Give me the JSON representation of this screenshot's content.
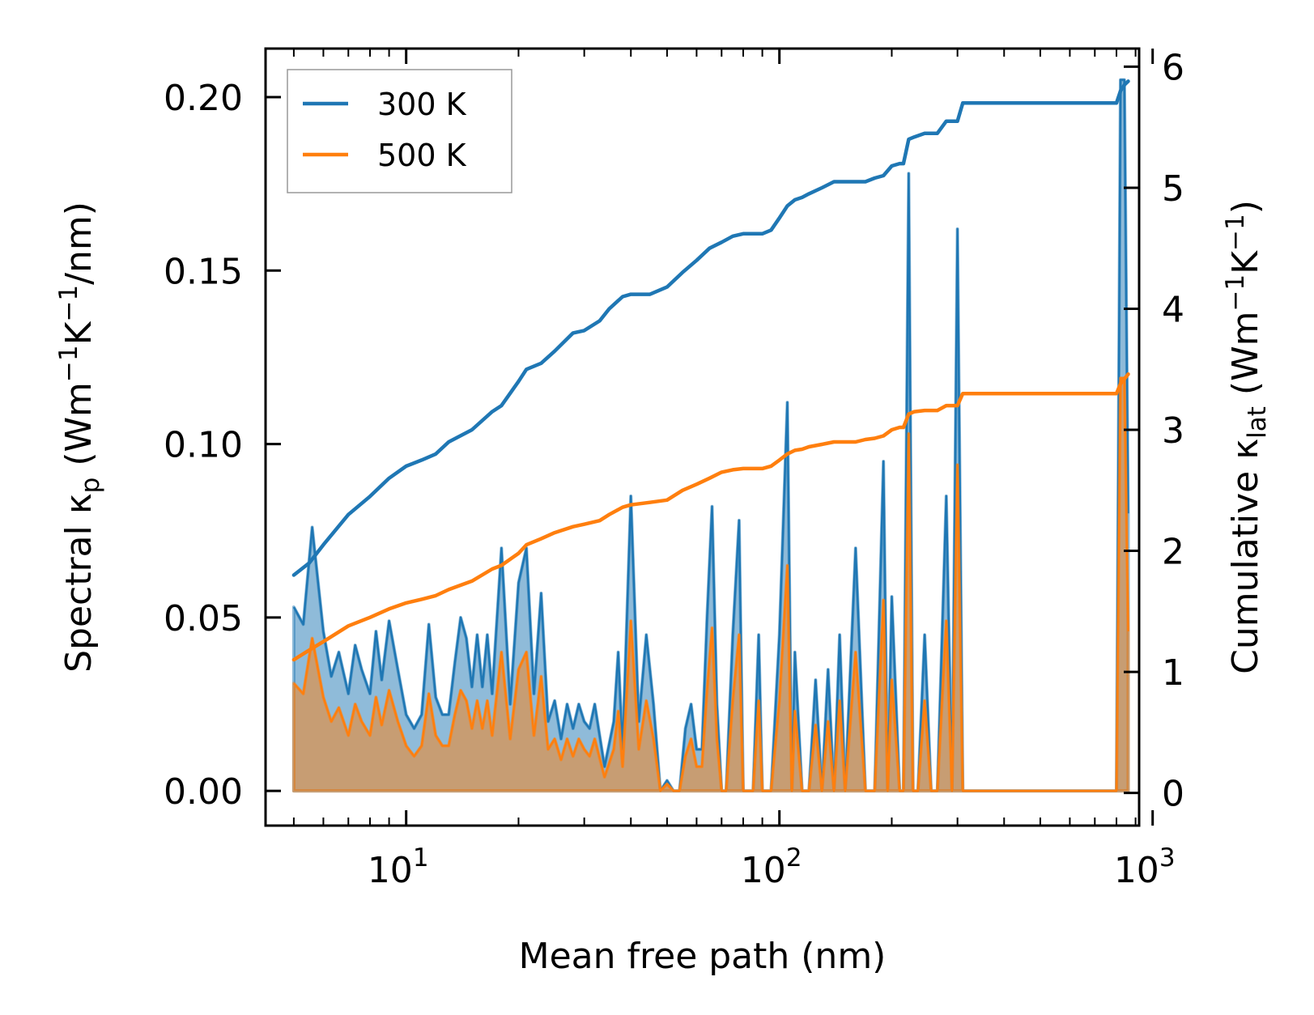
{
  "chart_data": {
    "type": "line",
    "xscale": "log",
    "xlim": [
      4.2,
      920
    ],
    "ylim_left": [
      -0.01,
      0.214
    ],
    "ylim_right": [
      -0.27,
      6.15
    ],
    "xlabel": "Mean free path (nm)",
    "ylabel_left": {
      "pre": "Spectral κ",
      "sub": "p",
      "mid": " (Wm",
      "sup1": "−1",
      "mid2": "K",
      "sup2": "−1",
      "post": "/nm)"
    },
    "ylabel_right": {
      "pre": "Cumulative κ",
      "sub": "lat",
      "mid": " (Wm",
      "sup1": "−1",
      "mid2": "K",
      "sup2": "−1",
      "post": ")"
    },
    "x_ticks": [
      {
        "value": 10,
        "base": "10",
        "exp": "1"
      },
      {
        "value": 100,
        "base": "10",
        "exp": "2"
      },
      {
        "value": 1000,
        "base": "10",
        "exp": "3"
      }
    ],
    "y_ticks_left": [
      "0.00",
      "0.05",
      "0.10",
      "0.15",
      "0.20"
    ],
    "y_ticks_right": [
      "0",
      "1",
      "2",
      "3",
      "4",
      "5",
      "6"
    ],
    "legend": {
      "position": "upper-left",
      "entries": [
        "300 K",
        "500 K"
      ]
    },
    "colors": {
      "300 K": "#1f77b4",
      "500 K": "#ff7f0e"
    },
    "spectral_series": [
      {
        "name": "300 K",
        "x": [
          5,
          5.3,
          5.6,
          6,
          6.3,
          6.6,
          7,
          7.3,
          7.6,
          8,
          8.3,
          8.6,
          9,
          9.5,
          10,
          10.5,
          11,
          11.5,
          12,
          12.5,
          13,
          13.5,
          14,
          14.5,
          15,
          15.5,
          16,
          16.5,
          17,
          18,
          19,
          20,
          21,
          22,
          23,
          24,
          25,
          26,
          27,
          28,
          29,
          30,
          31,
          32,
          34,
          36,
          37,
          38,
          40,
          42,
          44,
          46,
          48,
          50,
          52,
          54,
          56,
          58,
          60,
          62,
          64,
          66,
          68,
          70,
          72,
          75,
          78,
          80,
          82,
          85,
          88,
          90,
          95,
          100,
          105,
          108,
          110,
          115,
          120,
          125,
          130,
          135,
          140,
          145,
          150,
          160,
          170,
          180,
          190,
          195,
          200,
          210,
          215,
          222,
          228,
          235,
          245,
          255,
          265,
          280,
          290,
          300,
          310,
          318,
          325,
          340,
          780,
          800,
          820,
          840,
          860
        ],
        "y": [
          0.053,
          0.048,
          0.076,
          0.046,
          0.033,
          0.04,
          0.028,
          0.042,
          0.035,
          0.028,
          0.046,
          0.032,
          0.049,
          0.035,
          0.022,
          0.018,
          0.022,
          0.048,
          0.027,
          0.022,
          0.022,
          0.037,
          0.05,
          0.044,
          0.03,
          0.045,
          0.03,
          0.045,
          0.028,
          0.07,
          0.025,
          0.06,
          0.07,
          0.028,
          0.057,
          0.02,
          0.026,
          0.015,
          0.025,
          0.018,
          0.025,
          0.02,
          0.018,
          0.025,
          0.007,
          0.02,
          0.04,
          0.012,
          0.085,
          0.02,
          0.045,
          0.025,
          0.0,
          0.003,
          0.0,
          0.0,
          0.018,
          0.025,
          0.012,
          0.012,
          0.05,
          0.082,
          0.025,
          0.0,
          0.0,
          0.045,
          0.078,
          0.0,
          0.0,
          0.0,
          0.045,
          0.0,
          0.0,
          0.045,
          0.112,
          0.0,
          0.04,
          0.0,
          0.0,
          0.032,
          0.0,
          0.035,
          0.0,
          0.045,
          0.0,
          0.07,
          0.0,
          0.0,
          0.095,
          0.0,
          0.056,
          0.0,
          0.0,
          0.178,
          0.0,
          0.0,
          0.045,
          0.0,
          0.0,
          0.085,
          0.0,
          0.162,
          0.0,
          0.0,
          0.0,
          0.0,
          0.0,
          0.0,
          0.205,
          0.205,
          0.08
        ]
      },
      {
        "name": "500 K",
        "x": [
          5,
          5.3,
          5.6,
          6,
          6.3,
          6.6,
          7,
          7.3,
          7.6,
          8,
          8.3,
          8.6,
          9,
          9.5,
          10,
          10.5,
          11,
          11.5,
          12,
          12.5,
          13,
          13.5,
          14,
          14.5,
          15,
          15.5,
          16,
          16.5,
          17,
          18,
          19,
          20,
          21,
          22,
          23,
          24,
          25,
          26,
          27,
          28,
          29,
          30,
          31,
          32,
          34,
          36,
          37,
          38,
          40,
          42,
          44,
          46,
          48,
          50,
          52,
          54,
          56,
          58,
          60,
          62,
          64,
          66,
          68,
          70,
          72,
          75,
          78,
          80,
          82,
          85,
          88,
          90,
          95,
          100,
          105,
          108,
          110,
          115,
          120,
          125,
          130,
          135,
          140,
          145,
          150,
          160,
          170,
          180,
          190,
          195,
          200,
          210,
          215,
          222,
          228,
          235,
          245,
          255,
          265,
          280,
          290,
          300,
          310,
          318,
          325,
          340,
          780,
          800,
          820,
          840,
          860
        ],
        "y": [
          0.031,
          0.028,
          0.044,
          0.027,
          0.02,
          0.024,
          0.016,
          0.025,
          0.02,
          0.016,
          0.027,
          0.019,
          0.029,
          0.02,
          0.013,
          0.01,
          0.013,
          0.028,
          0.016,
          0.013,
          0.013,
          0.022,
          0.029,
          0.026,
          0.018,
          0.026,
          0.018,
          0.026,
          0.016,
          0.04,
          0.015,
          0.035,
          0.04,
          0.016,
          0.033,
          0.012,
          0.015,
          0.009,
          0.015,
          0.01,
          0.015,
          0.012,
          0.01,
          0.015,
          0.004,
          0.012,
          0.023,
          0.007,
          0.049,
          0.012,
          0.026,
          0.015,
          0.0,
          0.002,
          0.0,
          0.0,
          0.01,
          0.015,
          0.007,
          0.007,
          0.029,
          0.047,
          0.015,
          0.0,
          0.0,
          0.026,
          0.045,
          0.0,
          0.0,
          0.0,
          0.026,
          0.0,
          0.0,
          0.026,
          0.065,
          0.0,
          0.023,
          0.0,
          0.0,
          0.019,
          0.0,
          0.02,
          0.0,
          0.026,
          0.0,
          0.04,
          0.0,
          0.0,
          0.055,
          0.0,
          0.032,
          0.0,
          0.0,
          0.103,
          0.0,
          0.0,
          0.026,
          0.0,
          0.0,
          0.049,
          0.0,
          0.094,
          0.0,
          0.0,
          0.0,
          0.0,
          0.0,
          0.0,
          0.119,
          0.119,
          0.046
        ]
      }
    ],
    "cumulative_series": [
      {
        "name": "300 K",
        "x": [
          5,
          5.5,
          6,
          7,
          8,
          9,
          10,
          11,
          12,
          13,
          15,
          17,
          18,
          20,
          21,
          23,
          25,
          28,
          30,
          33,
          35,
          38,
          40,
          45,
          50,
          55,
          60,
          65,
          70,
          75,
          80,
          85,
          90,
          95,
          100,
          105,
          110,
          115,
          120,
          130,
          140,
          150,
          160,
          170,
          180,
          190,
          200,
          210,
          215,
          222,
          230,
          245,
          255,
          265,
          280,
          290,
          300,
          310,
          320,
          340,
          780,
          800,
          820,
          840,
          860
        ],
        "y": [
          1.8,
          1.9,
          2.05,
          2.3,
          2.45,
          2.6,
          2.7,
          2.75,
          2.8,
          2.9,
          3.0,
          3.15,
          3.2,
          3.4,
          3.5,
          3.55,
          3.65,
          3.8,
          3.82,
          3.9,
          4.0,
          4.1,
          4.12,
          4.12,
          4.18,
          4.3,
          4.4,
          4.5,
          4.55,
          4.6,
          4.62,
          4.62,
          4.62,
          4.65,
          4.75,
          4.85,
          4.9,
          4.92,
          4.95,
          5.0,
          5.05,
          5.05,
          5.05,
          5.05,
          5.08,
          5.1,
          5.18,
          5.2,
          5.2,
          5.4,
          5.42,
          5.45,
          5.45,
          5.45,
          5.55,
          5.55,
          5.55,
          5.7,
          5.7,
          5.7,
          5.7,
          5.7,
          5.8,
          5.85,
          5.88
        ]
      },
      {
        "name": "500 K",
        "x": [
          5,
          5.5,
          6,
          7,
          8,
          9,
          10,
          11,
          12,
          13,
          15,
          17,
          18,
          20,
          21,
          23,
          25,
          28,
          30,
          33,
          35,
          38,
          40,
          45,
          50,
          55,
          60,
          65,
          70,
          75,
          80,
          85,
          90,
          95,
          100,
          105,
          110,
          115,
          120,
          130,
          140,
          150,
          160,
          170,
          180,
          190,
          200,
          210,
          215,
          222,
          230,
          245,
          255,
          265,
          280,
          290,
          300,
          310,
          320,
          340,
          780,
          800,
          820,
          840,
          860
        ],
        "y": [
          1.1,
          1.18,
          1.25,
          1.38,
          1.45,
          1.52,
          1.57,
          1.6,
          1.63,
          1.68,
          1.75,
          1.85,
          1.88,
          1.98,
          2.05,
          2.1,
          2.15,
          2.2,
          2.22,
          2.25,
          2.3,
          2.36,
          2.38,
          2.4,
          2.42,
          2.5,
          2.55,
          2.6,
          2.65,
          2.67,
          2.68,
          2.68,
          2.68,
          2.7,
          2.75,
          2.8,
          2.83,
          2.84,
          2.86,
          2.88,
          2.9,
          2.9,
          2.9,
          2.92,
          2.93,
          2.95,
          3.0,
          3.02,
          3.02,
          3.13,
          3.15,
          3.16,
          3.16,
          3.16,
          3.2,
          3.2,
          3.2,
          3.3,
          3.3,
          3.3,
          3.3,
          3.3,
          3.38,
          3.42,
          3.46
        ]
      }
    ]
  }
}
